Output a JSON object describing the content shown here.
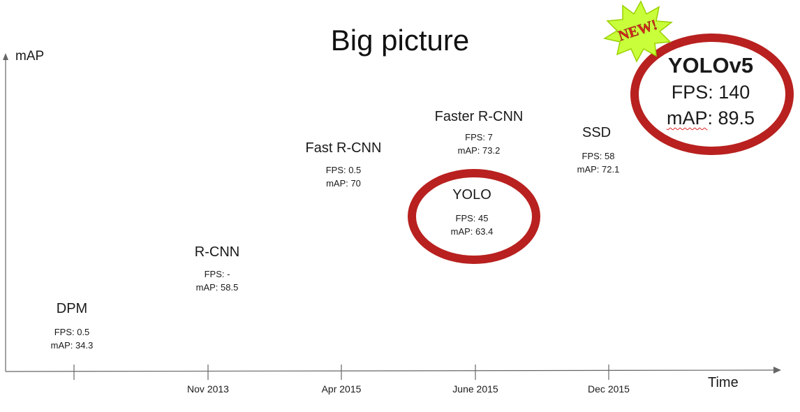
{
  "title": "Big picture",
  "y_axis_label": "mAP",
  "x_axis_label": "Time",
  "x_ticks": [
    "",
    "Nov 2013",
    "Apr 2015",
    "June 2015",
    "Dec 2015"
  ],
  "badge_text": "NEW!",
  "colors": {
    "highlight_ring": "#b8211f",
    "badge_fill": "#c8ff3a",
    "badge_text": "#d42a1c",
    "axis": "#666666"
  },
  "models": [
    {
      "id": "dpm",
      "name": "DPM",
      "fps": "FPS: 0.5",
      "map": "mAP: 34.3",
      "highlighted": false
    },
    {
      "id": "rcnn",
      "name": "R-CNN",
      "fps": "FPS: -",
      "map": "mAP: 58.5",
      "highlighted": false
    },
    {
      "id": "fast-rcnn",
      "name": "Fast R-CNN",
      "fps": "FPS: 0.5",
      "map": "mAP: 70",
      "highlighted": false
    },
    {
      "id": "faster-rcnn",
      "name": "Faster R-CNN",
      "fps": "FPS: 7",
      "map": "mAP: 73.2",
      "highlighted": false
    },
    {
      "id": "yolo",
      "name": "YOLO",
      "fps": "FPS: 45",
      "map": "mAP: 63.4",
      "highlighted": true
    },
    {
      "id": "ssd",
      "name": "SSD",
      "fps": "FPS: 58",
      "map": "mAP: 72.1",
      "highlighted": false
    },
    {
      "id": "yolov5",
      "name": "YOLOv5",
      "fps": "FPS: 140",
      "map_key": "mAP",
      "map_value": ": 89.5",
      "highlighted": true
    }
  ]
}
